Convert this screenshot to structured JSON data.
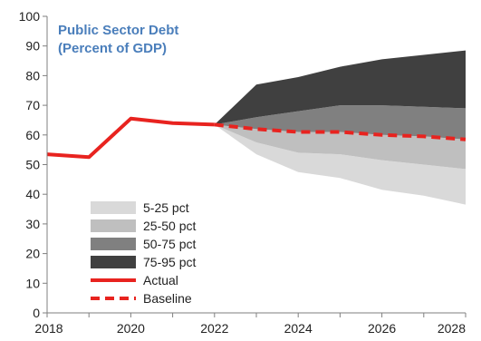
{
  "chart_data": {
    "type": "area",
    "title": "Public  Sector Debt",
    "subtitle": "(Percent of GDP)",
    "xlabel": "",
    "ylabel": "",
    "xlim": [
      2018,
      2028
    ],
    "ylim": [
      0,
      100
    ],
    "x_ticks": [
      "2018",
      "2020",
      "2022",
      "2024",
      "2026",
      "2028"
    ],
    "y_ticks": [
      "0",
      "10",
      "20",
      "30",
      "40",
      "50",
      "60",
      "70",
      "80",
      "90",
      "100"
    ],
    "grid": false,
    "legend_position": "bottom-left",
    "x": [
      2022,
      2023,
      2024,
      2025,
      2026,
      2027,
      2028
    ],
    "percentiles": {
      "p5": [
        63.5,
        53.5,
        47.5,
        45.5,
        41.5,
        39.5,
        36.5
      ],
      "p25": [
        63.5,
        57.5,
        54,
        53.5,
        51.5,
        50,
        48.5
      ],
      "p50": [
        63.5,
        62,
        61,
        61,
        60,
        59.5,
        58.5
      ],
      "p75": [
        63.5,
        66,
        68,
        70,
        70,
        69.5,
        69
      ],
      "p95": [
        63.5,
        77,
        79.5,
        83,
        85.5,
        87,
        88.5
      ]
    },
    "series": [
      {
        "name": "Actual",
        "style": "solid",
        "color": "#e8231f",
        "x": [
          2018,
          2019,
          2020,
          2021,
          2022
        ],
        "y": [
          53.5,
          52.5,
          65.5,
          64,
          63.5
        ]
      },
      {
        "name": "Baseline",
        "style": "dashed",
        "color": "#e8231f",
        "x": [
          2022,
          2023,
          2024,
          2025,
          2026,
          2027,
          2028
        ],
        "y": [
          63.5,
          62,
          61,
          61,
          60,
          59.5,
          58.5
        ]
      }
    ],
    "bands": [
      {
        "name": "5-25 pct",
        "lower": "p5",
        "upper": "p25",
        "color": "#d9d9d9"
      },
      {
        "name": "25-50 pct",
        "lower": "p25",
        "upper": "p50",
        "color": "#bfbfbf"
      },
      {
        "name": "50-75 pct",
        "lower": "p50",
        "upper": "p75",
        "color": "#808080"
      },
      {
        "name": "75-95 pct",
        "lower": "p75",
        "upper": "p95",
        "color": "#404040"
      }
    ],
    "legend": [
      {
        "label": "5-25 pct",
        "kind": "swatch",
        "color": "#d9d9d9"
      },
      {
        "label": "25-50 pct",
        "kind": "swatch",
        "color": "#bfbfbf"
      },
      {
        "label": "50-75 pct",
        "kind": "swatch",
        "color": "#808080"
      },
      {
        "label": "75-95 pct",
        "kind": "swatch",
        "color": "#404040"
      },
      {
        "label": "Actual",
        "kind": "line",
        "color": "#e8231f"
      },
      {
        "label": "Baseline",
        "kind": "dashed",
        "color": "#e8231f"
      }
    ]
  }
}
